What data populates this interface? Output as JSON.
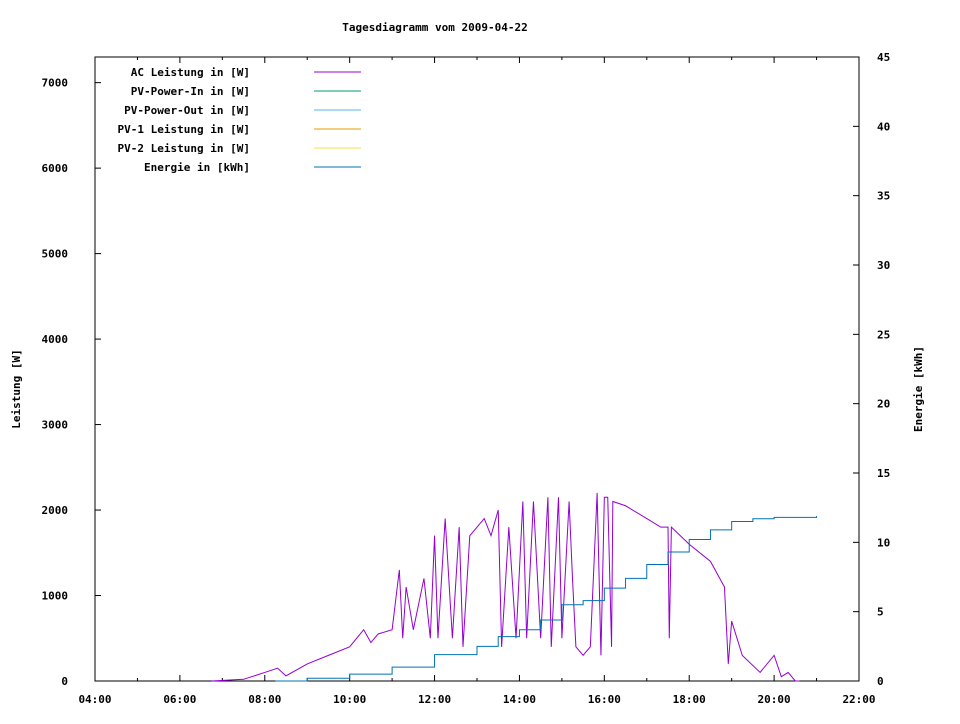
{
  "chart_data": {
    "type": "line",
    "title": "Tagesdiagramm vom 2009-04-22",
    "xlabel": "",
    "ylabel": "Leistung [W]",
    "y2label": "Energie [kWh]",
    "xlim": [
      4,
      22
    ],
    "ylim": [
      0,
      7300
    ],
    "y2lim": [
      0,
      45
    ],
    "x_ticks": [
      "04:00",
      "06:00",
      "08:00",
      "10:00",
      "12:00",
      "14:00",
      "16:00",
      "18:00",
      "20:00",
      "22:00"
    ],
    "y_ticks": [
      0,
      1000,
      2000,
      3000,
      4000,
      5000,
      6000,
      7000
    ],
    "y2_ticks": [
      0,
      5,
      10,
      15,
      20,
      25,
      30,
      35,
      40,
      45
    ],
    "legend_position": "top-left",
    "grid": false,
    "series": [
      {
        "name": "AC Leistung in [W]",
        "color": "#9400d3",
        "axis": "y1",
        "x": [
          6.75,
          7.5,
          8.0,
          8.3,
          8.5,
          9.0,
          9.5,
          10.0,
          10.33,
          10.5,
          10.67,
          11.0,
          11.17,
          11.25,
          11.33,
          11.5,
          11.75,
          11.9,
          12.0,
          12.08,
          12.25,
          12.42,
          12.58,
          12.67,
          12.83,
          13.0,
          13.17,
          13.33,
          13.5,
          13.58,
          13.75,
          13.92,
          14.08,
          14.17,
          14.33,
          14.5,
          14.67,
          14.75,
          14.92,
          15.0,
          15.17,
          15.25,
          15.33,
          15.5,
          15.67,
          15.83,
          15.92,
          16.0,
          16.08,
          16.17,
          16.2,
          16.5,
          17.0,
          17.33,
          17.5,
          17.53,
          17.58,
          18.0,
          18.5,
          18.83,
          18.92,
          19.0,
          19.25,
          19.67,
          20.0,
          20.17,
          20.33,
          20.5,
          20.6
        ],
        "y": [
          0,
          20,
          100,
          150,
          60,
          200,
          300,
          400,
          600,
          450,
          550,
          600,
          1300,
          500,
          1100,
          600,
          1200,
          500,
          1700,
          500,
          1900,
          500,
          1800,
          400,
          1700,
          1800,
          1900,
          1700,
          2000,
          400,
          1800,
          500,
          2100,
          500,
          2100,
          500,
          2150,
          400,
          2150,
          500,
          2100,
          1200,
          400,
          300,
          400,
          2200,
          300,
          2150,
          2150,
          400,
          2100,
          2050,
          1900,
          1800,
          1800,
          500,
          1800,
          1600,
          1400,
          1100,
          200,
          700,
          300,
          100,
          300,
          50,
          100,
          0,
          0
        ]
      },
      {
        "name": "PV-Power-In in [W]",
        "color": "#009e73",
        "axis": "y1",
        "x": [],
        "y": []
      },
      {
        "name": "PV-Power-Out in [W]",
        "color": "#56b4e9",
        "axis": "y1",
        "x": [],
        "y": []
      },
      {
        "name": "PV-1 Leistung in [W]",
        "color": "#e69f00",
        "axis": "y1",
        "x": [],
        "y": []
      },
      {
        "name": "PV-2 Leistung in [W]",
        "color": "#f0e442",
        "axis": "y1",
        "x": [],
        "y": []
      },
      {
        "name": "Energie in [kWh]",
        "color": "#0072b2",
        "axis": "y2",
        "x": [
          8.25,
          9.0,
          10.0,
          11.0,
          12.0,
          13.0,
          13.5,
          14.0,
          14.5,
          15.0,
          15.5,
          16.0,
          16.5,
          17.0,
          17.5,
          18.0,
          18.5,
          19.0,
          19.5,
          20.0,
          21.0
        ],
        "y": [
          0,
          0.2,
          0.5,
          1.0,
          1.9,
          2.5,
          3.2,
          3.7,
          4.4,
          5.5,
          5.8,
          6.7,
          7.4,
          8.4,
          9.3,
          10.2,
          10.9,
          11.5,
          11.7,
          11.8,
          11.9
        ]
      }
    ]
  }
}
